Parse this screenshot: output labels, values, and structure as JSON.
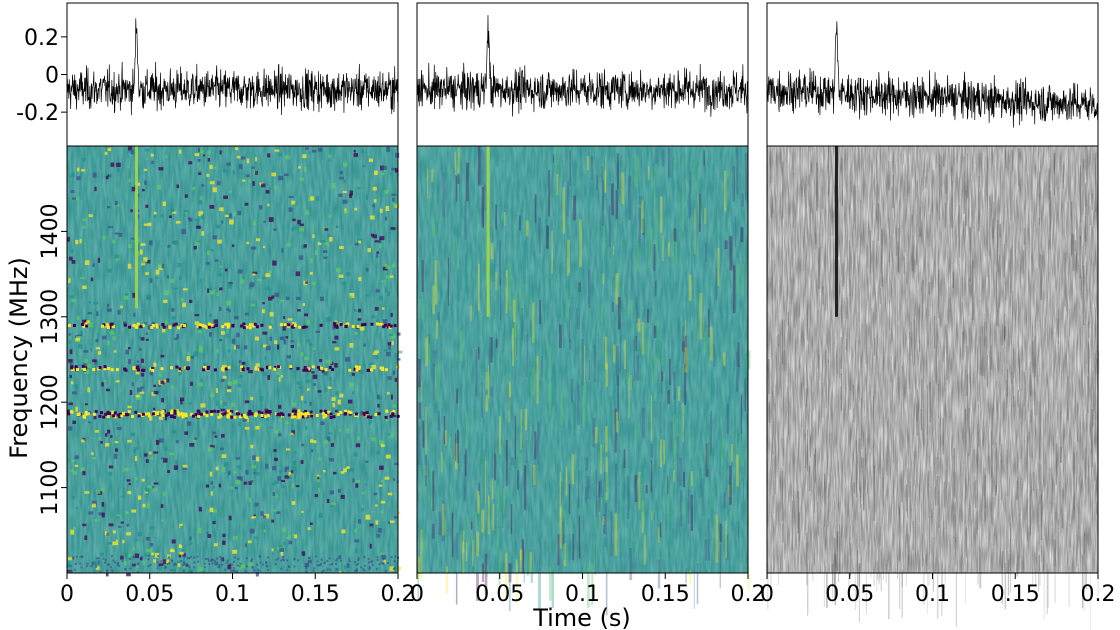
{
  "chart_data": {
    "type": "dynamic-spectrum",
    "xlabel": "Time (s)",
    "ylabel": "Frequency (MHz)",
    "xlim": [
      0,
      0.2
    ],
    "x_ticks": [
      "0",
      "0.05",
      "0.1",
      "0.15",
      "0.2"
    ],
    "x_tick_values": [
      0,
      0.05,
      0.1,
      0.15,
      0.2
    ],
    "ylim": [
      1000,
      1500
    ],
    "y_ticks": [
      "1100",
      "1200",
      "1300",
      "1400"
    ],
    "y_tick_values": [
      1100,
      1200,
      1300,
      1400
    ],
    "profile_ylim": [
      -0.38,
      0.38
    ],
    "profile_ticks": [
      "0.2",
      "0",
      "-0.2"
    ],
    "profile_tick_values": [
      0.2,
      0,
      -0.2
    ],
    "panels": [
      {
        "colormap": "viridis",
        "pulse_time": 0.042,
        "pulse_peak": 0.35,
        "pulse_freq_range": [
          1310,
          1500
        ],
        "rfi_bands_mhz": [
          1290,
          1240,
          1188,
          1185
        ]
      },
      {
        "colormap": "viridis",
        "pulse_time": 0.043,
        "pulse_peak": 0.35,
        "pulse_freq_range": [
          1300,
          1500
        ],
        "rfi_bands_mhz": []
      },
      {
        "colormap": "gray",
        "pulse_time": 0.042,
        "pulse_peak": 0.35,
        "pulse_freq_range": [
          1300,
          1500
        ],
        "rfi_bands_mhz": []
      }
    ]
  }
}
